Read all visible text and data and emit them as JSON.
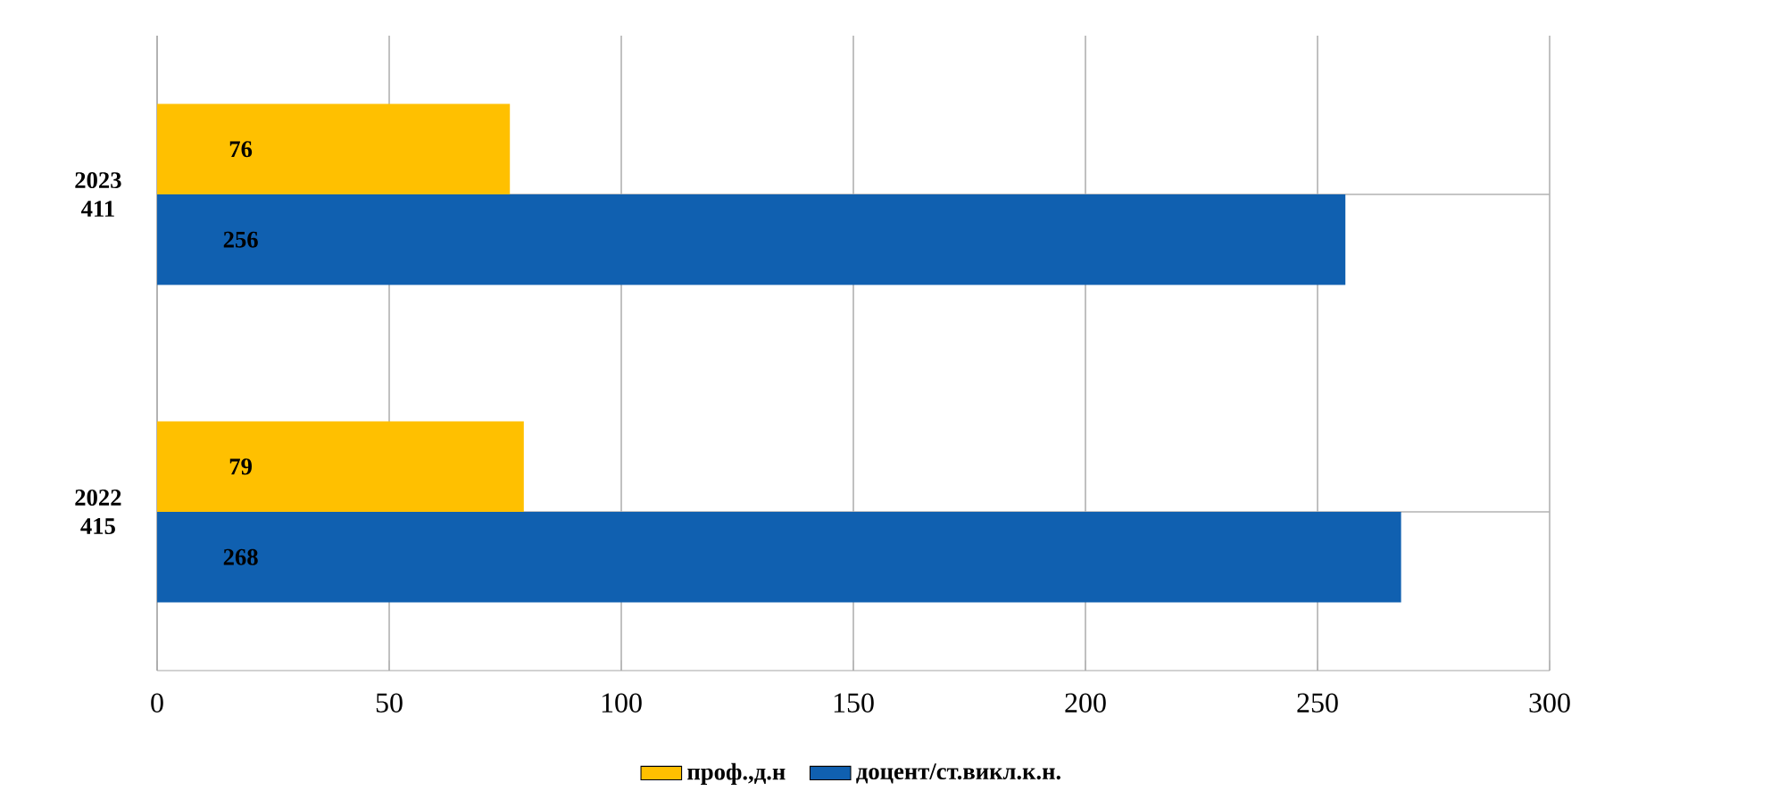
{
  "chart_data": {
    "type": "bar",
    "orientation": "horizontal",
    "categories": [
      "2023 411",
      "2022 415"
    ],
    "series": [
      {
        "name": "проф.,д.н",
        "color": "#ffc000",
        "values": [
          76,
          79
        ]
      },
      {
        "name": "доцент/ст.викл.к.н.",
        "color": "#1060b0",
        "values": [
          256,
          268
        ]
      }
    ],
    "xlim": [
      0,
      300
    ],
    "xticks": [
      0,
      50,
      100,
      150,
      200,
      250,
      300
    ],
    "grid": true,
    "legend": "bottom",
    "data_labels": true
  }
}
